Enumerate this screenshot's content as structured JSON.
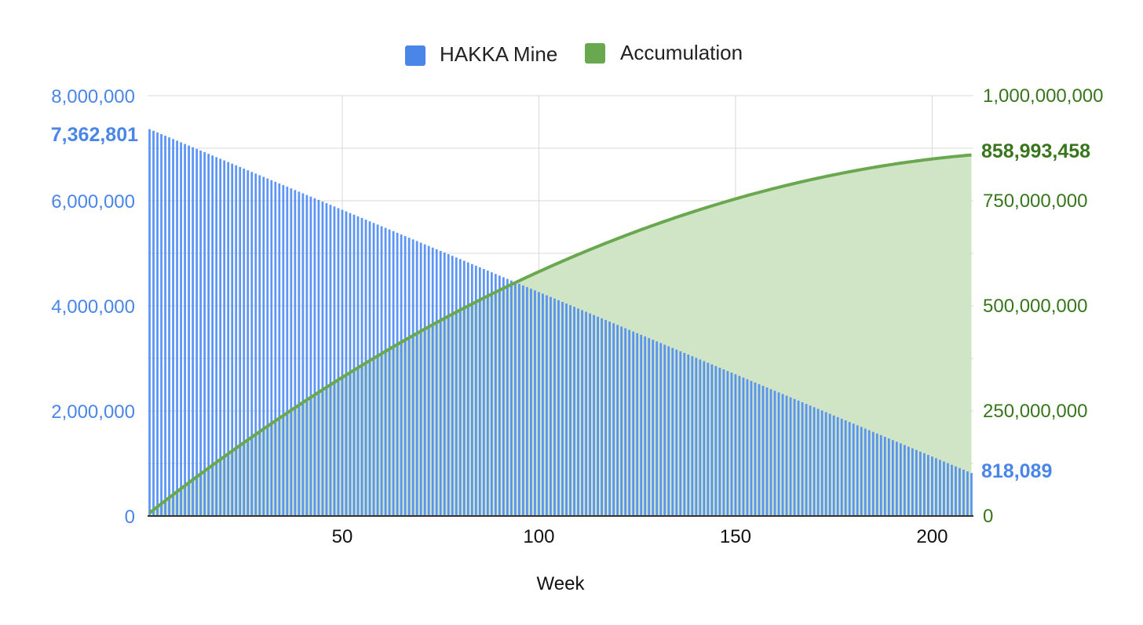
{
  "colors": {
    "bars": "#4a8af4",
    "bars_fill": "#7fb0f7",
    "line": "#6aa84f",
    "area": "#d0e4c6",
    "left_axis": "#4a86e8",
    "right_axis": "#38761d",
    "grid": "#d9d9d9",
    "baseline": "#333333"
  },
  "chart_data": {
    "type": "bar",
    "xlabel": "Week",
    "legend": {
      "placement": "top-center",
      "items": [
        {
          "label": "HAKKA Mine",
          "color": "#4a86e8",
          "swatch": "square"
        },
        {
          "label": "Accumulation",
          "color": "#6aa84f",
          "swatch": "square"
        }
      ]
    },
    "grid": true,
    "x": {
      "min": 1,
      "max": 210,
      "ticks": [
        "50",
        "100",
        "150",
        "200"
      ],
      "tick_values": [
        50,
        100,
        150,
        200
      ]
    },
    "y_left": {
      "min": 0,
      "max": 8000000,
      "ticks": [
        "0",
        "2,000,000",
        "4,000,000",
        "6,000,000",
        "8,000,000"
      ],
      "tick_values": [
        0,
        2000000,
        4000000,
        6000000,
        8000000
      ]
    },
    "y_right": {
      "min": 0,
      "max": 1000000000,
      "ticks": [
        "0",
        "250,000,000",
        "500,000,000",
        "750,000,000",
        "1,000,000,000"
      ],
      "tick_values": [
        0,
        250000000,
        500000000,
        750000000,
        1000000000
      ]
    },
    "series": [
      {
        "name": "HAKKA Mine",
        "type": "bar",
        "axis": "left",
        "weeks": {
          "from": 1,
          "to": 210
        },
        "first_value": 7362801,
        "last_value": 818089
      },
      {
        "name": "Accumulation",
        "type": "area",
        "axis": "right",
        "description_values": [
          {
            "week": 1,
            "value": 7362801
          },
          {
            "week": 95,
            "value": 560000000
          },
          {
            "week": 150,
            "value": 755000000
          },
          {
            "week": 210,
            "value": 858993458
          }
        ]
      }
    ],
    "annotations": {
      "first_bar": "7,362,801",
      "last_bar": "818,089",
      "total": "858,993,458"
    }
  }
}
